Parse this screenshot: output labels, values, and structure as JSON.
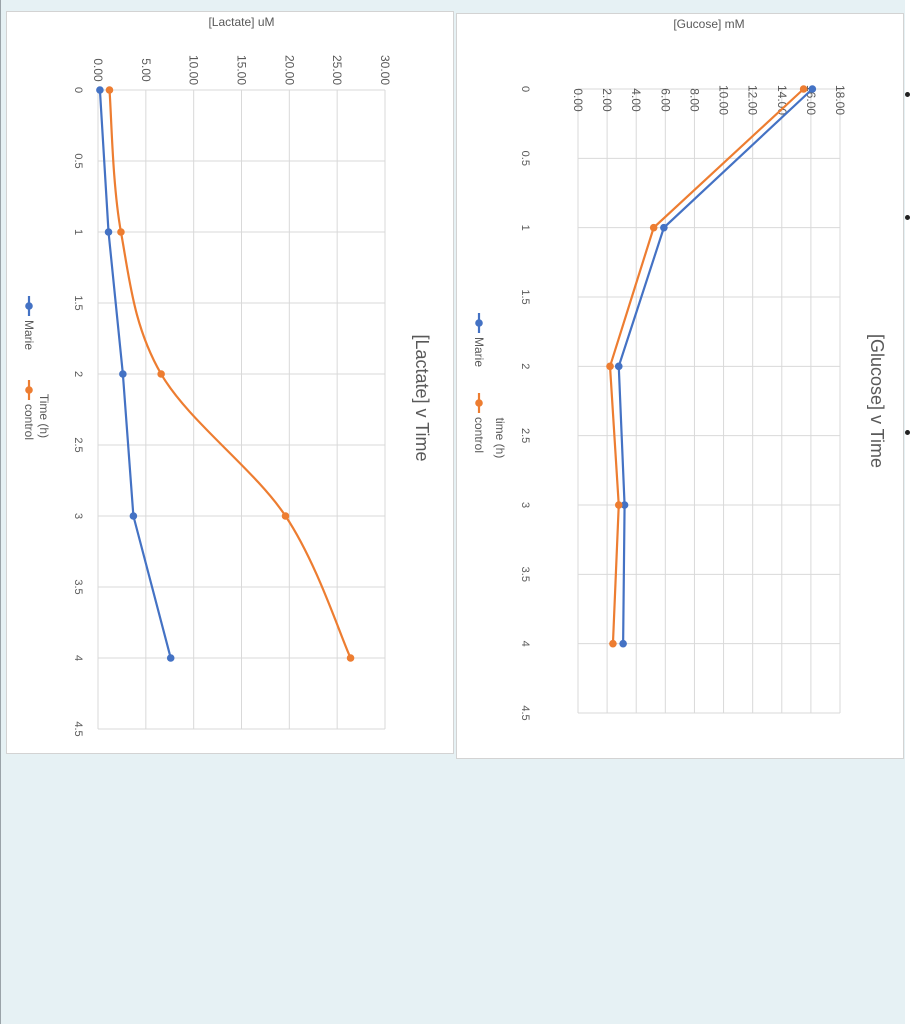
{
  "chart_data": [
    {
      "type": "line",
      "title": "[Glucose] v Time",
      "xlabel": "time (h)",
      "ylabel": "[Gucose] mM",
      "xlim": [
        0,
        4.5
      ],
      "ylim": [
        0,
        18
      ],
      "x_ticks": [
        "0",
        "0.5",
        "1",
        "1.5",
        "2",
        "2.5",
        "3",
        "3.5",
        "4",
        "4.5"
      ],
      "y_ticks": [
        "0.00",
        "2.00",
        "4.00",
        "6.00",
        "8.00",
        "10.00",
        "12.00",
        "14.00",
        "16.00",
        "18.00"
      ],
      "grid": true,
      "legend_position": "bottom",
      "orientation": "rotated 90 degrees clockwise",
      "x": [
        0,
        1,
        2,
        3,
        4
      ],
      "series": [
        {
          "name": "Marie",
          "color": "#4472c4",
          "values": [
            16.1,
            5.9,
            2.8,
            3.2,
            3.1
          ]
        },
        {
          "name": "control",
          "color": "#ed7d31",
          "values": [
            15.5,
            5.2,
            2.2,
            2.8,
            2.4
          ]
        }
      ]
    },
    {
      "type": "line",
      "title": "[Lactate] v Time",
      "xlabel": "Time (h)",
      "ylabel": "[Lactate] uM",
      "xlim": [
        0,
        4.5
      ],
      "ylim": [
        0,
        30
      ],
      "x_ticks": [
        "0",
        "0.5",
        "1",
        "1.5",
        "2",
        "2.5",
        "3",
        "3.5",
        "4",
        "4.5"
      ],
      "y_ticks": [
        "0.00",
        "5.00",
        "10.00",
        "15.00",
        "20.00",
        "25.00",
        "30.00"
      ],
      "grid": true,
      "legend_position": "bottom",
      "orientation": "rotated 90 degrees clockwise",
      "x": [
        0,
        1,
        2,
        3,
        4
      ],
      "series": [
        {
          "name": "Marie",
          "color": "#4472c4",
          "values": [
            0.2,
            1.1,
            2.6,
            3.7,
            7.6
          ]
        },
        {
          "name": "control",
          "color": "#ed7d31",
          "values": [
            1.2,
            2.4,
            6.6,
            19.6,
            26.4
          ]
        }
      ]
    }
  ]
}
